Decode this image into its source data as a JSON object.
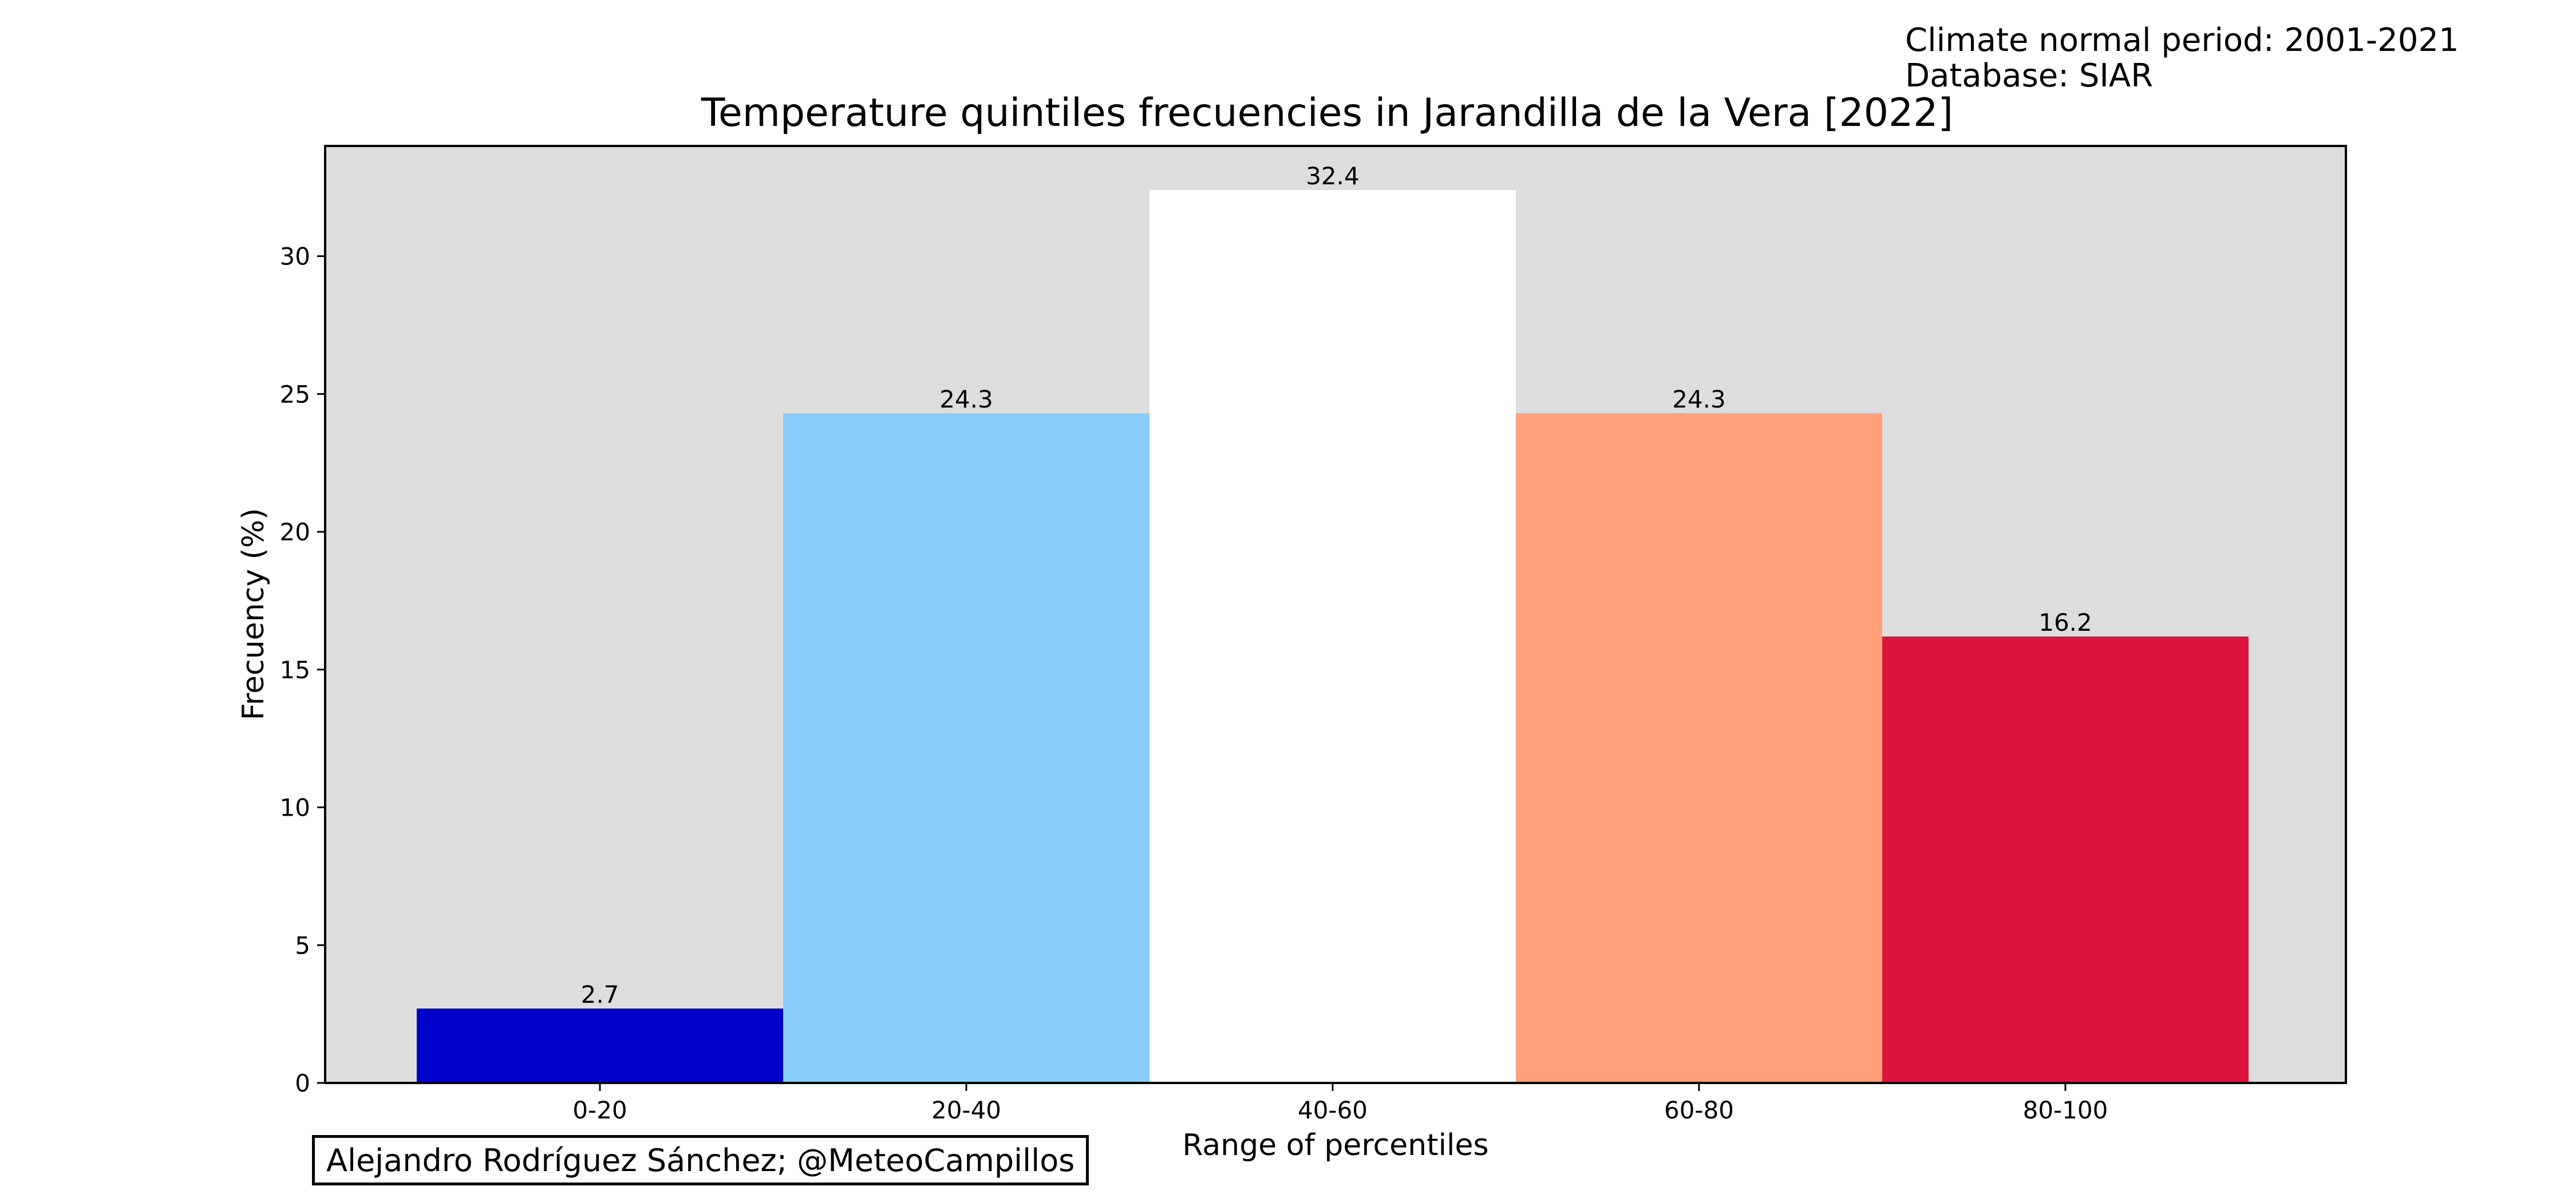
{
  "header": {
    "normal_period": "Climate normal period: 2001-2021",
    "database": "Database: SIAR"
  },
  "credit": "Alejandro Rodríguez Sánchez; @MeteoCampillos",
  "chart_data": {
    "type": "bar",
    "title": "Temperature quintiles frecuencies in Jarandilla de la Vera [2022]",
    "xlabel": "Range of percentiles",
    "ylabel": "Frecuency (%)",
    "categories": [
      "0-20",
      "20-40",
      "40-60",
      "60-80",
      "80-100"
    ],
    "values": [
      2.7,
      24.3,
      32.4,
      24.3,
      16.2
    ],
    "data_labels": [
      "2.7",
      "24.3",
      "32.4",
      "24.3",
      "16.2"
    ],
    "colors": [
      "#0000CD",
      "#87CEFA",
      "#FFFFFF",
      "#FFA07A",
      "#DC143C"
    ],
    "ylim": [
      0,
      34
    ],
    "yticks": [
      0,
      5,
      10,
      15,
      20,
      25,
      30
    ],
    "ytick_labels": [
      "0",
      "5",
      "10",
      "15",
      "20",
      "25",
      "30"
    ],
    "plot_background": "#DDDDDD",
    "grid": false,
    "legend": "none"
  }
}
